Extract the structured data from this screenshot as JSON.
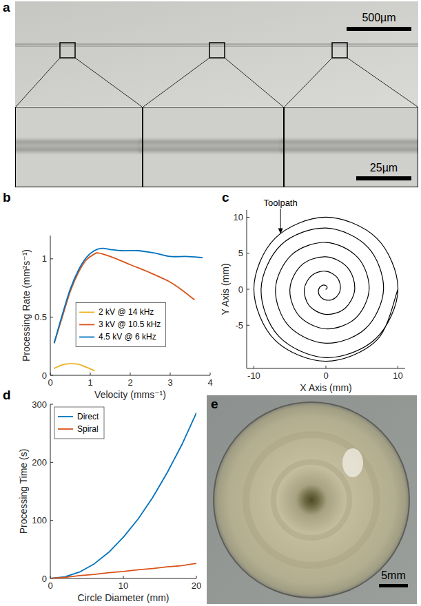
{
  "chart_data": [
    {
      "type": "line",
      "panel_label": "b",
      "x_label": "Velocity (mms⁻¹)",
      "y_label": "Processing Rate (mm²s⁻¹)",
      "xlim": [
        0,
        4
      ],
      "xticks": [
        0,
        1,
        2,
        3,
        4
      ],
      "ylim": [
        0,
        1.2
      ],
      "yticks": [
        0,
        0.5,
        1
      ],
      "grid": false,
      "legend": "center",
      "line_style": "smooth",
      "series": [
        {
          "name": "2 kV @ 14 kHz",
          "color": "#EDB120",
          "x": [
            0.1,
            0.3,
            0.5,
            0.7,
            0.9,
            1.1
          ],
          "values": [
            0.06,
            0.09,
            0.1,
            0.095,
            0.07,
            0.04
          ]
        },
        {
          "name": "3 kV @ 10.5 kHz",
          "color": "#D95319",
          "x": [
            0.1,
            0.3,
            0.5,
            0.7,
            0.9,
            1.1,
            1.2,
            1.5,
            2,
            2.5,
            3,
            3.3,
            3.6
          ],
          "values": [
            0.28,
            0.5,
            0.72,
            0.88,
            0.99,
            1.04,
            1.05,
            1.02,
            0.95,
            0.88,
            0.8,
            0.73,
            0.65
          ]
        },
        {
          "name": "4.5 kV @ 6 kHz",
          "color": "#0072BD",
          "x": [
            0.1,
            0.3,
            0.5,
            0.7,
            0.9,
            1.1,
            1.3,
            1.5,
            1.8,
            2.2,
            2.6,
            3,
            3.4,
            3.8
          ],
          "values": [
            0.28,
            0.52,
            0.74,
            0.9,
            1.01,
            1.07,
            1.09,
            1.08,
            1.07,
            1.07,
            1.05,
            1.02,
            1.02,
            1.01
          ]
        }
      ]
    },
    {
      "type": "line",
      "panel_label": "c",
      "x_label": "X Axis (mm)",
      "y_label": "Y Axis (mm)",
      "xlim": [
        -11,
        11
      ],
      "xticks": [
        -10,
        0,
        10
      ],
      "ylim": [
        -11,
        11
      ],
      "yticks": [
        -5,
        0,
        5,
        10
      ],
      "grid": false,
      "line_style": "smooth",
      "annotations": [
        {
          "text": "Toolpath",
          "x": -6.3,
          "y": 7.7
        }
      ],
      "series": [
        {
          "color": "#000000",
          "x": [
            0,
            0.18,
            0,
            -0.53,
            -1,
            -0.88,
            0,
            1.24,
            2,
            1.59,
            0,
            -1.94,
            -3,
            -2.3,
            0,
            2.65,
            4,
            3.01,
            0,
            -3.36,
            -5,
            -3.71,
            0,
            4.07,
            6,
            4.42,
            0,
            -4.77,
            -7,
            -5.13,
            0,
            5.48,
            8,
            5.83,
            0,
            -6.19,
            -9,
            -6.54,
            0,
            6.89,
            10,
            7.07,
            0,
            -7.07,
            -10,
            -7.07,
            0,
            7.07,
            10
          ],
          "values": [
            0,
            0.18,
            0.5,
            0.53,
            0,
            -0.88,
            -1.5,
            -1.24,
            0,
            1.59,
            2.5,
            1.94,
            0,
            -2.3,
            -3.5,
            -2.65,
            0,
            3.01,
            4.5,
            3.36,
            0,
            -3.71,
            -5.5,
            -4.07,
            0,
            4.42,
            6.5,
            4.77,
            0,
            -5.13,
            -7.5,
            -5.48,
            0,
            5.83,
            8.5,
            6.19,
            0,
            -6.54,
            -9.5,
            -6.89,
            0,
            7.07,
            10,
            7.07,
            0,
            -7.07,
            -10,
            -7.07,
            0
          ]
        }
      ]
    },
    {
      "type": "line",
      "panel_label": "d",
      "x_label": "Circle Diameter (mm)",
      "y_label": "Processing Time (s)",
      "xlim": [
        0,
        20
      ],
      "xticks": [
        0,
        10,
        20
      ],
      "ylim": [
        0,
        300
      ],
      "yticks": [
        0,
        100,
        200,
        300
      ],
      "grid": false,
      "legend": "upper left",
      "x": [
        0,
        2,
        4,
        6,
        8,
        10,
        12,
        14,
        16,
        18,
        20
      ],
      "series": [
        {
          "name": "Direct",
          "color": "#0072BD",
          "values": [
            0,
            2.8,
            11,
            25,
            45,
            71,
            102,
            139,
            182,
            230,
            285
          ]
        },
        {
          "name": "Spiral",
          "color": "#D95319",
          "values": [
            0,
            2,
            5,
            7,
            10,
            12,
            15,
            17,
            20,
            22,
            26
          ]
        }
      ]
    }
  ],
  "images": [
    {
      "panel_label": "a",
      "scale_bars": [
        "500µm",
        "25µm"
      ]
    },
    {
      "panel_label": "e",
      "scale_bars": [
        "5mm"
      ]
    }
  ]
}
